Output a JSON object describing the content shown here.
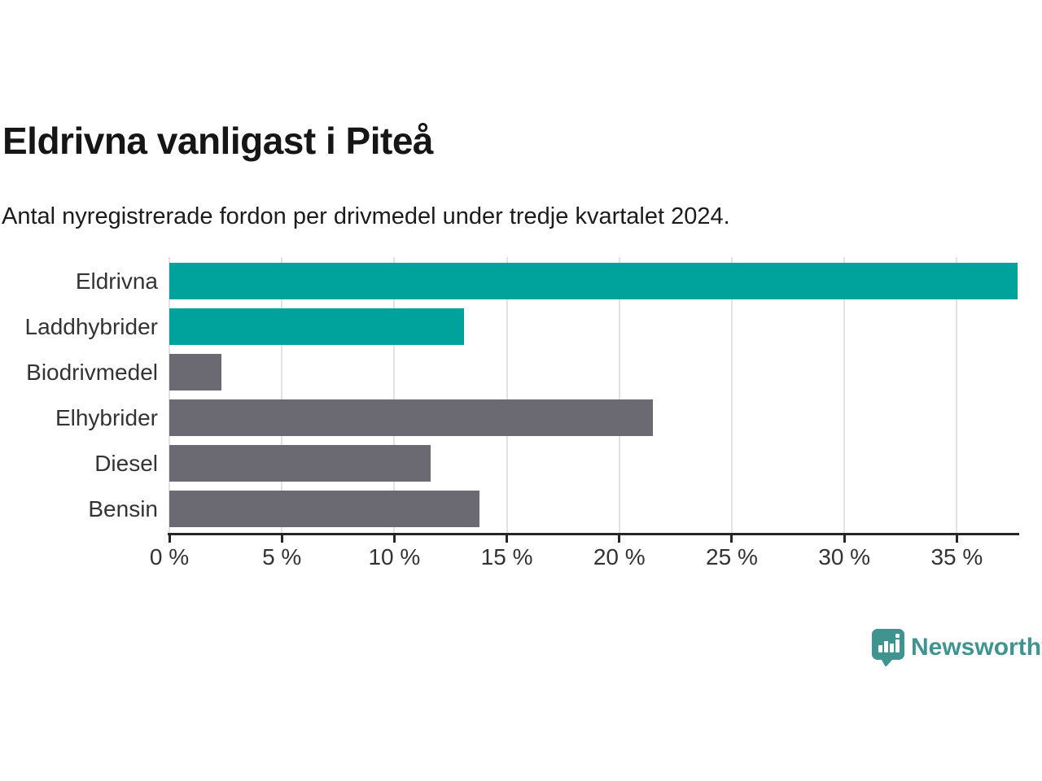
{
  "header": {
    "title": "Eldrivna vanligast i Piteå",
    "subtitle": "Antal nyregistrerade fordon per drivmedel under tredje kvartalet 2024."
  },
  "chart_data": {
    "type": "bar",
    "orientation": "horizontal",
    "title": "Eldrivna vanligast i Piteå",
    "subtitle": "Antal nyregistrerade fordon per drivmedel under tredje kvartalet 2024.",
    "categories": [
      "Eldrivna",
      "Laddhybrider",
      "Biodrivmedel",
      "Elhybrider",
      "Diesel",
      "Bensin"
    ],
    "values": [
      37.7,
      13.1,
      2.3,
      21.5,
      11.6,
      13.8
    ],
    "unit": "%",
    "bar_colors": [
      "#00a39b",
      "#00a39b",
      "#6b6a73",
      "#6b6a73",
      "#6b6a73",
      "#6b6a73"
    ],
    "xlim": [
      0,
      37.7
    ],
    "xticks": [
      0,
      5,
      10,
      15,
      20,
      25,
      30,
      35
    ],
    "xtick_labels": [
      "0 %",
      "5 %",
      "10 %",
      "15 %",
      "20 %",
      "25 %",
      "30 %",
      "35 %"
    ],
    "xlabel": "",
    "ylabel": "",
    "grid": "vertical",
    "legend": "none"
  },
  "branding": {
    "logo_text": "Newsworthy",
    "logo_icon": "speech-bubble-bar-chart-icon",
    "logo_color": "#3f948f"
  },
  "colors": {
    "accent_teal": "#00a39b",
    "neutral_gray": "#6b6a73",
    "axis": "#262626",
    "grid": "#e2e2e2",
    "tick_text": "#333333",
    "title_text": "#161616"
  }
}
